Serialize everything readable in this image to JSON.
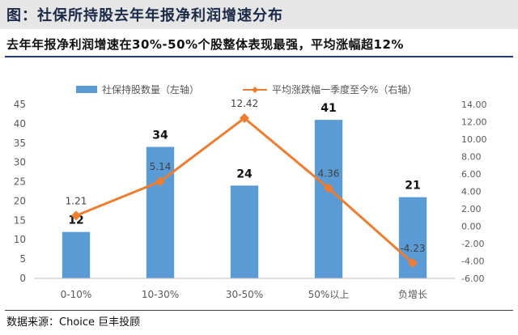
{
  "figure_title": "图：社保所持股去年年报净利润增速分布",
  "subtitle": "去年年报净利润增速在30%-50%个股整体表现最强，平均涨幅超12%",
  "source": "数据来源：Choice 巨丰投顾",
  "chart_data": {
    "type": "bar+line",
    "categories": [
      "0-10%",
      "10-30%",
      "30-50%",
      "50%以上",
      "负增长"
    ],
    "series": [
      {
        "name": "社保持股数量（左轴）",
        "type": "bar",
        "axis": "left",
        "color": "#5b9bd5",
        "values": [
          12,
          34,
          24,
          41,
          21
        ],
        "labels": [
          "12",
          "34",
          "24",
          "41",
          "21"
        ]
      },
      {
        "name": "平均涨跌幅一季度至今%（右轴）",
        "type": "line",
        "axis": "right",
        "color": "#ed7d31",
        "values": [
          1.21,
          5.14,
          12.42,
          4.36,
          -4.23
        ],
        "labels": [
          "1.21",
          "5.14",
          "12.42",
          "4.36",
          "-4.23"
        ]
      }
    ],
    "left_axis": {
      "ylim": [
        0,
        45
      ],
      "ticks": [
        "0",
        "5",
        "10",
        "15",
        "20",
        "25",
        "30",
        "35",
        "40",
        "45"
      ]
    },
    "right_axis": {
      "ylim": [
        -6,
        14
      ],
      "ticks": [
        "14.00",
        "12.00",
        "10.00",
        "8.00",
        "6.00",
        "4.00",
        "2.00",
        "0.00",
        "-2.00",
        "-4.00",
        "-6.00"
      ]
    },
    "legend_position": "top",
    "grid": false
  }
}
